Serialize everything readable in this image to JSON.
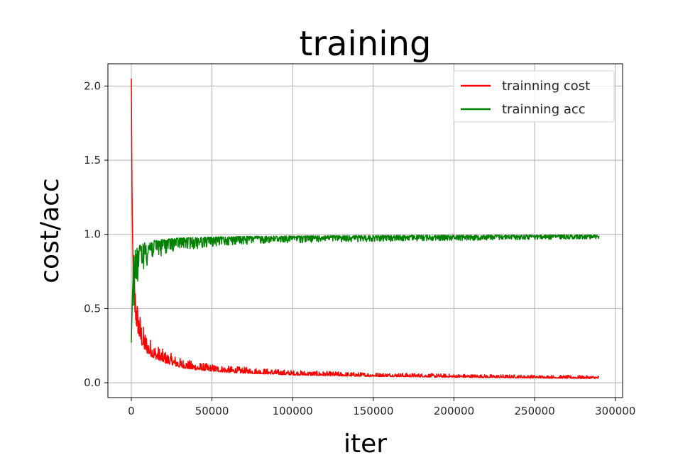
{
  "chart_data": {
    "type": "line",
    "title": "training",
    "xlabel": "iter",
    "ylabel": "cost/acc",
    "xlim": [
      -14500,
      304500
    ],
    "ylim": [
      -0.1,
      2.15
    ],
    "xticks": [
      0,
      50000,
      100000,
      150000,
      200000,
      250000,
      300000
    ],
    "xtick_labels": [
      "0",
      "50000",
      "100000",
      "150000",
      "200000",
      "250000",
      "300000"
    ],
    "yticks": [
      0.0,
      0.5,
      1.0,
      1.5,
      2.0
    ],
    "ytick_labels": [
      "0.0",
      "0.5",
      "1.0",
      "1.5",
      "2.0"
    ],
    "grid": true,
    "legend_position": "upper right",
    "series": [
      {
        "name": "trainning cost",
        "color": "#ff0000",
        "x": [
          0,
          500,
          1000,
          1500,
          2000,
          2500,
          3000,
          3500,
          4000,
          5000,
          6000,
          7000,
          8000,
          10000,
          12000,
          14000,
          16000,
          18000,
          20000,
          22000,
          25000,
          30000,
          35000,
          40000,
          50000,
          60000,
          70000,
          80000,
          100000,
          120000,
          140000,
          160000,
          180000,
          200000,
          220000,
          240000,
          260000,
          280000,
          290000
        ],
        "y": [
          2.05,
          1.2,
          0.85,
          0.65,
          0.55,
          0.5,
          0.46,
          0.42,
          0.39,
          0.35,
          0.31,
          0.28,
          0.26,
          0.23,
          0.21,
          0.19,
          0.18,
          0.17,
          0.16,
          0.15,
          0.14,
          0.12,
          0.11,
          0.1,
          0.09,
          0.08,
          0.075,
          0.07,
          0.06,
          0.055,
          0.05,
          0.048,
          0.045,
          0.042,
          0.04,
          0.038,
          0.036,
          0.034,
          0.033
        ]
      },
      {
        "name": "trainning acc",
        "color": "#008000",
        "x": [
          0,
          500,
          1000,
          1500,
          2000,
          3000,
          4000,
          5000,
          6000,
          8000,
          10000,
          12000,
          15000,
          20000,
          25000,
          30000,
          40000,
          50000,
          60000,
          80000,
          100000,
          120000,
          150000,
          200000,
          250000,
          290000
        ],
        "y": [
          0.27,
          0.5,
          0.68,
          0.76,
          0.8,
          0.83,
          0.85,
          0.87,
          0.88,
          0.9,
          0.91,
          0.92,
          0.93,
          0.94,
          0.95,
          0.955,
          0.96,
          0.965,
          0.97,
          0.975,
          0.978,
          0.98,
          0.982,
          0.985,
          0.988,
          0.99
        ]
      }
    ]
  }
}
